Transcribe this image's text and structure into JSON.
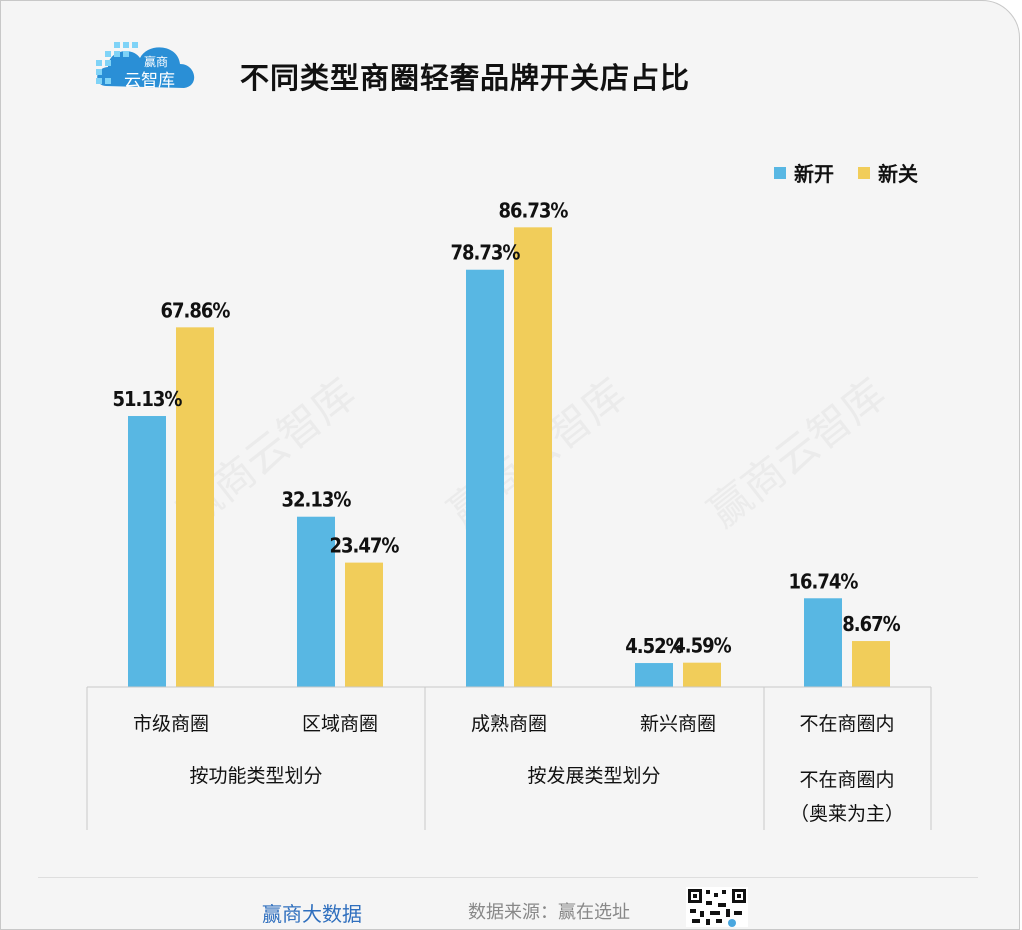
{
  "title": "不同类型商圈轻奢品牌开关店占比",
  "logo": {
    "line1": "赢商",
    "line2": "云智库"
  },
  "watermark": "赢商云智库",
  "legend": [
    {
      "name": "新开",
      "color": "#58b7e3"
    },
    {
      "name": "新关",
      "color": "#f1cd5a"
    }
  ],
  "chart_data": {
    "type": "bar",
    "categories": [
      "市级商圈",
      "区域商圈",
      "成熟商圈",
      "新兴商圈",
      "不在商圈内"
    ],
    "series": [
      {
        "name": "新开",
        "values": [
          51.13,
          32.13,
          78.73,
          4.52,
          16.74
        ],
        "labels": [
          "51.13%",
          "32.13%",
          "78.73%",
          "4.52%",
          "16.74%"
        ]
      },
      {
        "name": "新关",
        "values": [
          67.86,
          23.47,
          86.73,
          4.59,
          8.67
        ],
        "labels": [
          "67.86%",
          "23.47%",
          "86.73%",
          "4.59%",
          "8.67%"
        ]
      }
    ],
    "groups": [
      {
        "label": "按功能类型划分",
        "categories": [
          "市级商圈",
          "区域商圈"
        ]
      },
      {
        "label": "按发展类型划分",
        "categories": [
          "成熟商圈",
          "新兴商圈"
        ]
      },
      {
        "label_lines": [
          "不在商圈内",
          "（奥莱为主）"
        ],
        "categories": [
          "不在商圈内"
        ]
      }
    ],
    "ylim": [
      0,
      100
    ],
    "grid": false
  },
  "footer": {
    "brand": "赢商大数据",
    "source": "数据来源：赢在选址"
  }
}
